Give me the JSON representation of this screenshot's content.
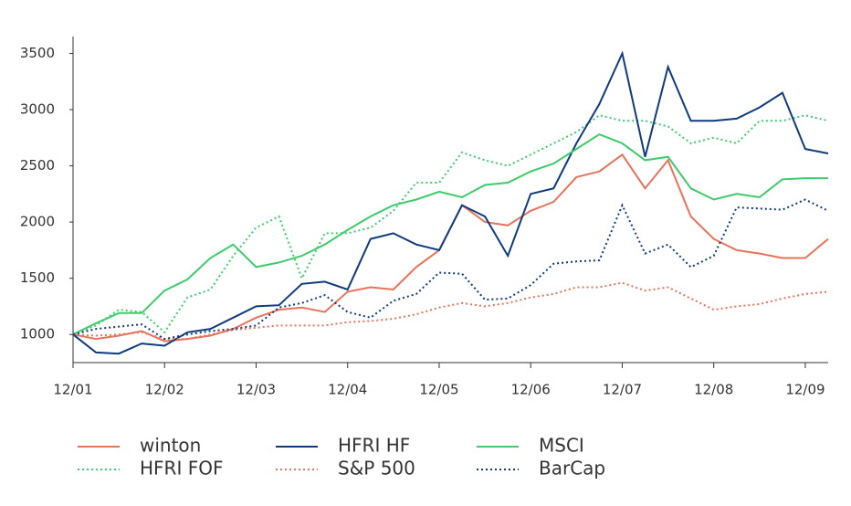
{
  "chart_data": {
    "type": "line",
    "x": [
      0,
      3,
      6,
      9,
      12,
      15,
      18,
      21,
      24,
      27,
      30,
      33,
      36,
      39,
      42,
      45,
      48,
      51,
      54,
      57,
      60,
      63,
      66,
      69,
      72,
      75,
      78,
      81,
      84,
      87,
      90,
      93,
      96,
      99
    ],
    "xlim": [
      0,
      99
    ],
    "xticks": [
      {
        "value": 0,
        "label": "12/01"
      },
      {
        "value": 12,
        "label": "12/02"
      },
      {
        "value": 24,
        "label": "12/03"
      },
      {
        "value": 36,
        "label": "12/04"
      },
      {
        "value": 48,
        "label": "12/05"
      },
      {
        "value": 60,
        "label": "12/06"
      },
      {
        "value": 72,
        "label": "12/07"
      },
      {
        "value": 84,
        "label": "12/08"
      },
      {
        "value": 96,
        "label": "12/09"
      }
    ],
    "ylim": [
      750,
      3650
    ],
    "yticks": [
      1000,
      1500,
      2000,
      2500,
      3000,
      3500
    ],
    "series": [
      {
        "name": "winton",
        "color": "#e8735a",
        "dashed": false,
        "values": [
          1000,
          960,
          990,
          1030,
          940,
          960,
          990,
          1050,
          1150,
          1220,
          1240,
          1200,
          1380,
          1420,
          1400,
          1600,
          1750,
          2150,
          2000,
          1970,
          2100,
          2180,
          2400,
          2450,
          2600,
          2300,
          2550,
          2050,
          1850,
          1750,
          1720,
          1680,
          1680,
          1850
        ]
      },
      {
        "name": "HFRI FOF",
        "color": "#3dcc6a",
        "dashed": true,
        "values": [
          1000,
          1080,
          1220,
          1200,
          1020,
          1330,
          1400,
          1700,
          1950,
          2050,
          1500,
          1900,
          1900,
          1950,
          2100,
          2350,
          2350,
          2620,
          2550,
          2500,
          2600,
          2700,
          2800,
          2950,
          2900,
          2900,
          2850,
          2700,
          2750,
          2700,
          2900,
          2900,
          2950,
          2900
        ]
      },
      {
        "name": "HFRI HF",
        "color": "#0d3b7d",
        "dashed": false,
        "values": [
          1000,
          840,
          830,
          920,
          900,
          1020,
          1050,
          1150,
          1250,
          1260,
          1450,
          1470,
          1400,
          1850,
          1900,
          1800,
          1750,
          2150,
          2050,
          1700,
          2250,
          2300,
          2700,
          3050,
          3500,
          2580,
          3380,
          2900,
          2900,
          2920,
          3020,
          3150,
          2650,
          2610
        ]
      },
      {
        "name": "S&P 500",
        "color": "#e8735a",
        "dashed": true,
        "values": [
          1000,
          990,
          1000,
          1020,
          960,
          960,
          1000,
          1040,
          1060,
          1080,
          1080,
          1080,
          1110,
          1120,
          1140,
          1180,
          1240,
          1280,
          1250,
          1280,
          1330,
          1360,
          1420,
          1420,
          1460,
          1390,
          1420,
          1320,
          1220,
          1250,
          1270,
          1320,
          1360,
          1380
        ]
      },
      {
        "name": "MSCI",
        "color": "#3dcc6a",
        "dashed": false,
        "values": [
          1000,
          1100,
          1190,
          1190,
          1390,
          1490,
          1680,
          1800,
          1600,
          1640,
          1700,
          1800,
          1930,
          2050,
          2150,
          2200,
          2270,
          2220,
          2330,
          2350,
          2450,
          2520,
          2650,
          2780,
          2700,
          2550,
          2580,
          2300,
          2200,
          2250,
          2220,
          2380,
          2390,
          2390
        ]
      },
      {
        "name": "BarCap",
        "color": "#0d3b7d",
        "dashed": true,
        "values": [
          1000,
          1050,
          1070,
          1090,
          960,
          1000,
          1030,
          1050,
          1080,
          1240,
          1280,
          1350,
          1200,
          1150,
          1300,
          1360,
          1550,
          1540,
          1310,
          1320,
          1440,
          1630,
          1650,
          1660,
          2150,
          1720,
          1800,
          1600,
          1700,
          2130,
          2120,
          2110,
          2200,
          2100
        ]
      }
    ]
  }
}
